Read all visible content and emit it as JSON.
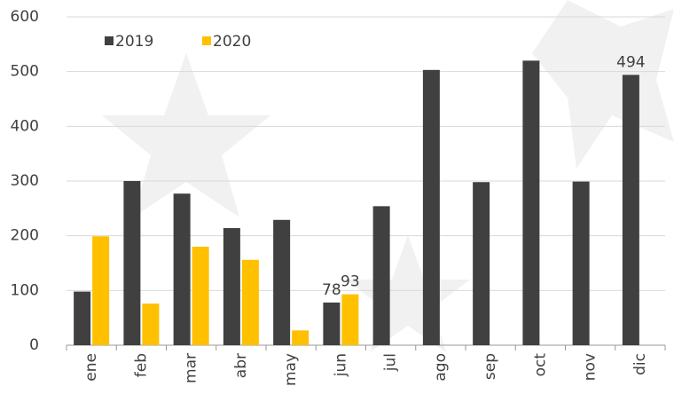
{
  "chart_data": {
    "type": "bar",
    "categories": [
      "ene",
      "feb",
      "mar",
      "abr",
      "may",
      "jun",
      "jul",
      "ago",
      "sep",
      "oct",
      "nov",
      "dic"
    ],
    "series": [
      {
        "name": "2019",
        "color": "#404040",
        "values": [
          98,
          300,
          277,
          214,
          229,
          78,
          254,
          503,
          298,
          520,
          299,
          494
        ],
        "value_labels": [
          null,
          null,
          null,
          null,
          null,
          "78",
          null,
          null,
          null,
          null,
          null,
          "494"
        ]
      },
      {
        "name": "2020",
        "color": "#ffc000",
        "values": [
          199,
          76,
          180,
          156,
          27,
          93,
          null,
          null,
          null,
          null,
          null,
          null
        ],
        "value_labels": [
          null,
          null,
          null,
          null,
          null,
          "93",
          null,
          null,
          null,
          null,
          null,
          null
        ]
      }
    ],
    "ylim": [
      0,
      600
    ],
    "yticks": [
      0,
      100,
      200,
      300,
      400,
      500,
      600
    ],
    "grid": true,
    "legend": "top-left"
  }
}
